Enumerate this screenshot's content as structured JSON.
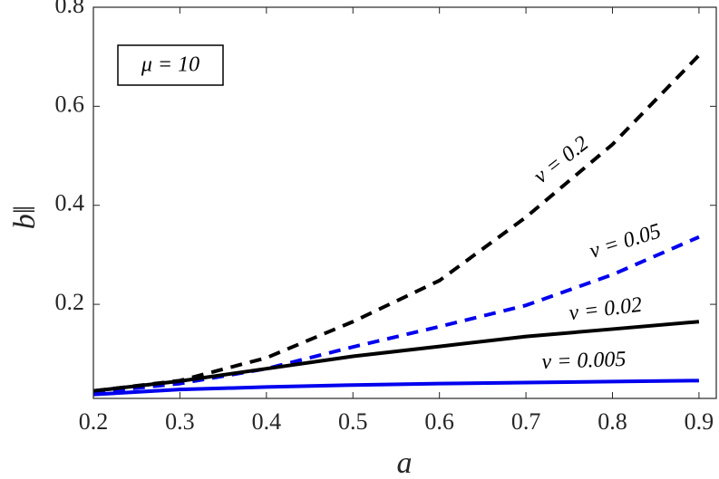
{
  "chart_data": {
    "type": "line",
    "xlabel": "a",
    "ylabel": "b‖",
    "annotation": "μ = 10",
    "x": [
      0.2,
      0.3,
      0.4,
      0.5,
      0.6,
      0.7,
      0.8,
      0.9
    ],
    "series": [
      {
        "name": "v = 0.2",
        "color": "#000000",
        "dashed": true,
        "values": [
          0.025,
          0.046,
          0.092,
          0.165,
          0.248,
          0.376,
          0.523,
          0.703
        ]
      },
      {
        "name": "v = 0.05",
        "color": "#0000ee",
        "dashed": true,
        "values": [
          0.022,
          0.04,
          0.07,
          0.114,
          0.155,
          0.198,
          0.26,
          0.336
        ]
      },
      {
        "name": "v = 0.02",
        "color": "#000000",
        "dashed": false,
        "values": [
          0.025,
          0.045,
          0.07,
          0.095,
          0.115,
          0.135,
          0.15,
          0.165
        ]
      },
      {
        "name": "v = 0.005",
        "color": "#0000ee",
        "dashed": false,
        "values": [
          0.018,
          0.028,
          0.033,
          0.037,
          0.04,
          0.042,
          0.044,
          0.046
        ]
      }
    ],
    "xlim": [
      0.2,
      0.92
    ],
    "ylim": [
      0.01,
      0.8
    ],
    "xticks": [
      0.2,
      0.3,
      0.4,
      0.5,
      0.6,
      0.7,
      0.8,
      0.9
    ],
    "yticks": [
      0.2,
      0.4,
      0.6,
      0.8
    ]
  }
}
